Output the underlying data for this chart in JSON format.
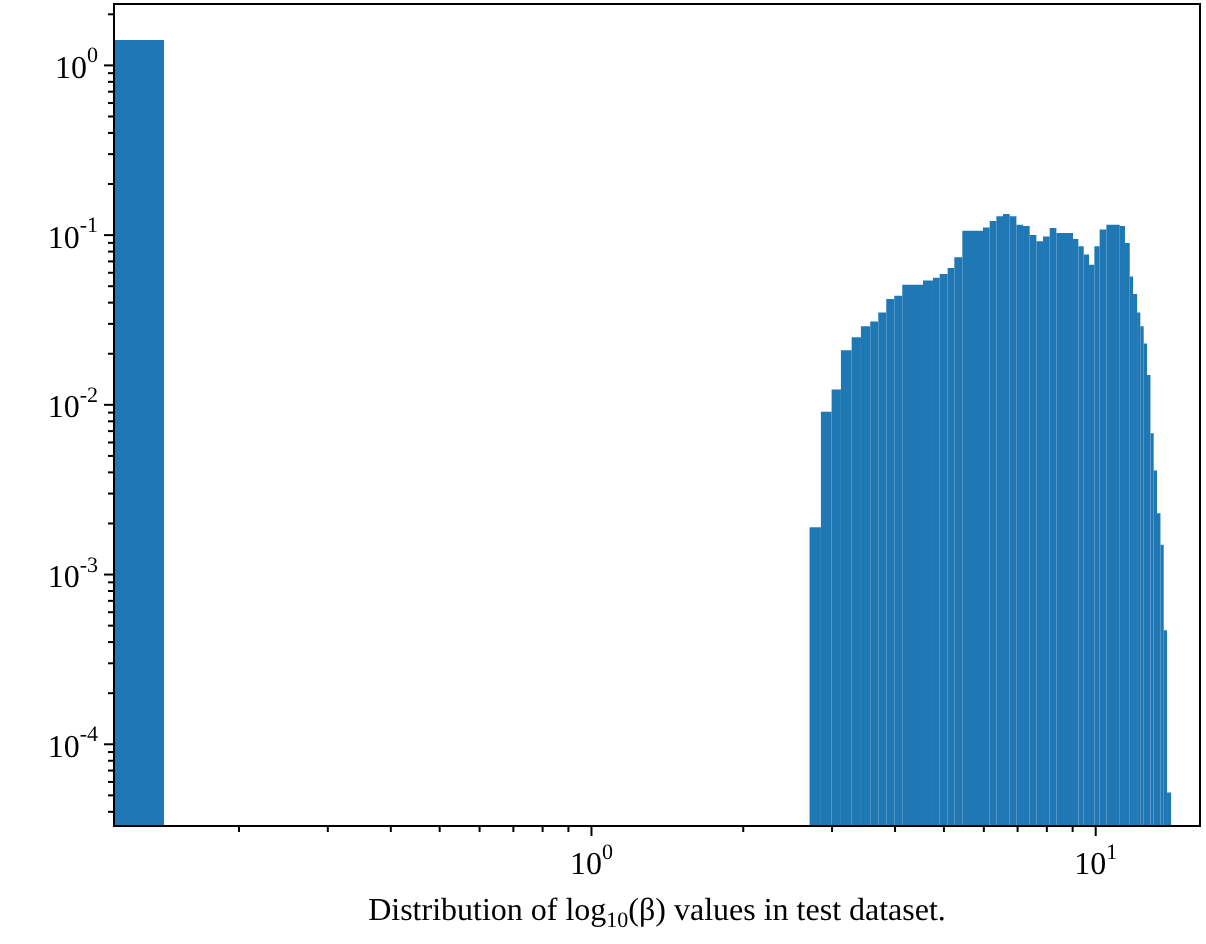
{
  "chart_data": {
    "type": "histogram",
    "xlabel": "Distribution of log$_{10}$(β) values in test dataset.",
    "log": "xy",
    "color": "#1f77b4",
    "bins": [
      0.113,
      0.142,
      2.707,
      2.851,
      2.994,
      3.124,
      3.281,
      3.423,
      3.572,
      3.705,
      3.843,
      3.986,
      4.134,
      4.544,
      4.756,
      4.904,
      5.086,
      5.244,
      5.438,
      5.977,
      6.162,
      6.353,
      6.549,
      6.752,
      6.961,
      7.176,
      7.396,
      7.626,
      7.862,
      8.105,
      8.356,
      9.016,
      9.239,
      9.467,
      9.7,
      9.94,
      10.18,
      10.5,
      11.16,
      11.43,
      11.68,
      11.86,
      12.08,
      12.26,
      12.45,
      12.64,
      12.84,
      13.03,
      13.23,
      13.44,
      13.64,
      13.85,
      14.11
    ],
    "values": [
      1.41,
      null,
      0.0019,
      0.0091,
      0.0123,
      0.021,
      0.025,
      0.029,
      0.031,
      0.035,
      0.042,
      0.044,
      0.051,
      0.054,
      0.056,
      0.059,
      0.064,
      0.074,
      0.106,
      0.111,
      0.121,
      0.129,
      0.133,
      0.129,
      0.115,
      0.113,
      0.1,
      0.092,
      0.098,
      0.11,
      0.103,
      0.095,
      0.086,
      0.077,
      0.067,
      0.086,
      0.108,
      0.115,
      0.113,
      0.09,
      0.057,
      0.045,
      0.035,
      0.029,
      0.023,
      0.015,
      0.0068,
      0.0041,
      0.0023,
      0.0015,
      0.00047,
      5.2e-05
    ],
    "xlim": [
      0.113,
      16.1
    ],
    "ylim": [
      3.3e-05,
      2.3
    ],
    "xticks": [
      {
        "value": 0.2,
        "label": null
      },
      {
        "value": 0.3,
        "label": null
      },
      {
        "value": 0.4,
        "label": null
      },
      {
        "value": 0.5,
        "label": null
      },
      {
        "value": 0.6,
        "label": null
      },
      {
        "value": 0.7,
        "label": null
      },
      {
        "value": 0.8,
        "label": null
      },
      {
        "value": 0.9,
        "label": null
      },
      {
        "value": 1,
        "label": "10$^{0}$"
      },
      {
        "value": 2,
        "label": null
      },
      {
        "value": 3,
        "label": null
      },
      {
        "value": 4,
        "label": null
      },
      {
        "value": 5,
        "label": null
      },
      {
        "value": 6,
        "label": null
      },
      {
        "value": 7,
        "label": null
      },
      {
        "value": 8,
        "label": null
      },
      {
        "value": 9,
        "label": null
      },
      {
        "value": 10,
        "label": "10$^{1}$"
      }
    ],
    "yticks": [
      {
        "value": 4e-05,
        "label": null
      },
      {
        "value": 5e-05,
        "label": null
      },
      {
        "value": 6e-05,
        "label": null
      },
      {
        "value": 7e-05,
        "label": null
      },
      {
        "value": 8e-05,
        "label": null
      },
      {
        "value": 9e-05,
        "label": null
      },
      {
        "value": 0.0001,
        "label": "10$^{-4}$"
      },
      {
        "value": 0.0002,
        "label": null
      },
      {
        "value": 0.0003,
        "label": null
      },
      {
        "value": 0.0004,
        "label": null
      },
      {
        "value": 0.0005,
        "label": null
      },
      {
        "value": 0.0006,
        "label": null
      },
      {
        "value": 0.0007,
        "label": null
      },
      {
        "value": 0.0008,
        "label": null
      },
      {
        "value": 0.0009,
        "label": null
      },
      {
        "value": 0.001,
        "label": "10$^{-3}$"
      },
      {
        "value": 0.002,
        "label": null
      },
      {
        "value": 0.003,
        "label": null
      },
      {
        "value": 0.004,
        "label": null
      },
      {
        "value": 0.005,
        "label": null
      },
      {
        "value": 0.006,
        "label": null
      },
      {
        "value": 0.007,
        "label": null
      },
      {
        "value": 0.008,
        "label": null
      },
      {
        "value": 0.009,
        "label": null
      },
      {
        "value": 0.01,
        "label": "10$^{-2}$"
      },
      {
        "value": 0.02,
        "label": null
      },
      {
        "value": 0.03,
        "label": null
      },
      {
        "value": 0.04,
        "label": null
      },
      {
        "value": 0.05,
        "label": null
      },
      {
        "value": 0.06,
        "label": null
      },
      {
        "value": 0.07,
        "label": null
      },
      {
        "value": 0.08,
        "label": null
      },
      {
        "value": 0.09,
        "label": null
      },
      {
        "value": 0.1,
        "label": "10$^{-1}$"
      },
      {
        "value": 0.2,
        "label": null
      },
      {
        "value": 0.3,
        "label": null
      },
      {
        "value": 0.4,
        "label": null
      },
      {
        "value": 0.5,
        "label": null
      },
      {
        "value": 0.6,
        "label": null
      },
      {
        "value": 0.7,
        "label": null
      },
      {
        "value": 0.8,
        "label": null
      },
      {
        "value": 0.9,
        "label": null
      },
      {
        "value": 1,
        "label": "10$^{0}$"
      },
      {
        "value": 2,
        "label": null
      }
    ]
  }
}
